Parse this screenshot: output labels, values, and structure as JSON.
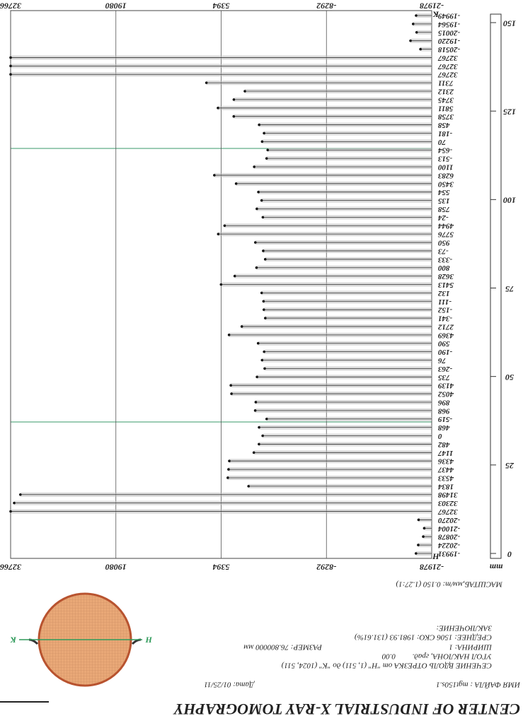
{
  "header": {
    "title": "CENTER OF INDUSTRIAL X-RAY TOMOGRAPHY"
  },
  "info": {
    "file": "ИМЯ ФАЙЛА : mgt150s.1",
    "date": "Дата: 01/25/11",
    "section": "СЕЧЕНИЕ ВДОЛЬ ОТРЕЗКА от \"Н\" (1, 511) до \"К\" (1024, 511)",
    "angle": "УГОЛ НАКЛОНА, град.",
    "angle_value": "0.00",
    "width": "ШИРИНА:  1",
    "size": "РАЗМЕР: 76.800000  мм",
    "stats": "СРЕДНЕЕ:   1506   СКО:   1981.93 (131.61%)",
    "conclusion": "ЗАКЛЮЧЕНИЕ:",
    "scale": "МАСШТАБ,мм/т:  0.150   (1.27:1)"
  },
  "image": {
    "start": "Н",
    "end": "К"
  },
  "chart_data": {
    "type": "bar",
    "values": [
      -19931,
      -20224,
      -20878,
      -21004,
      -20270,
      32767,
      32303,
      31498,
      1834,
      4533,
      4437,
      4336,
      1147,
      482,
      0,
      468,
      -519,
      968,
      896,
      4052,
      4139,
      735,
      -263,
      76,
      -190,
      590,
      4369,
      2712,
      -341,
      -152,
      -111,
      132,
      5413,
      3628,
      800,
      -333,
      -73,
      950,
      5776,
      4944,
      -24,
      758,
      135,
      554,
      3450,
      6283,
      1100,
      -513,
      -654,
      70,
      -181,
      458,
      3758,
      5811,
      3745,
      2312,
      7311,
      32767,
      32767,
      32767,
      -20518,
      -19220,
      -20015,
      -19564,
      -19949
    ],
    "xlim": [
      -21978,
      32766
    ],
    "xticks": [
      -21978,
      -8292,
      5394,
      19080,
      32766
    ],
    "ruler_label": "mm",
    "ruler_lim": [
      0,
      150
    ],
    "ruler_ticks": [
      0,
      25,
      50,
      75,
      100,
      125,
      150
    ],
    "start_label": "Н",
    "end_label": "К",
    "color": "#bbbbbb"
  }
}
